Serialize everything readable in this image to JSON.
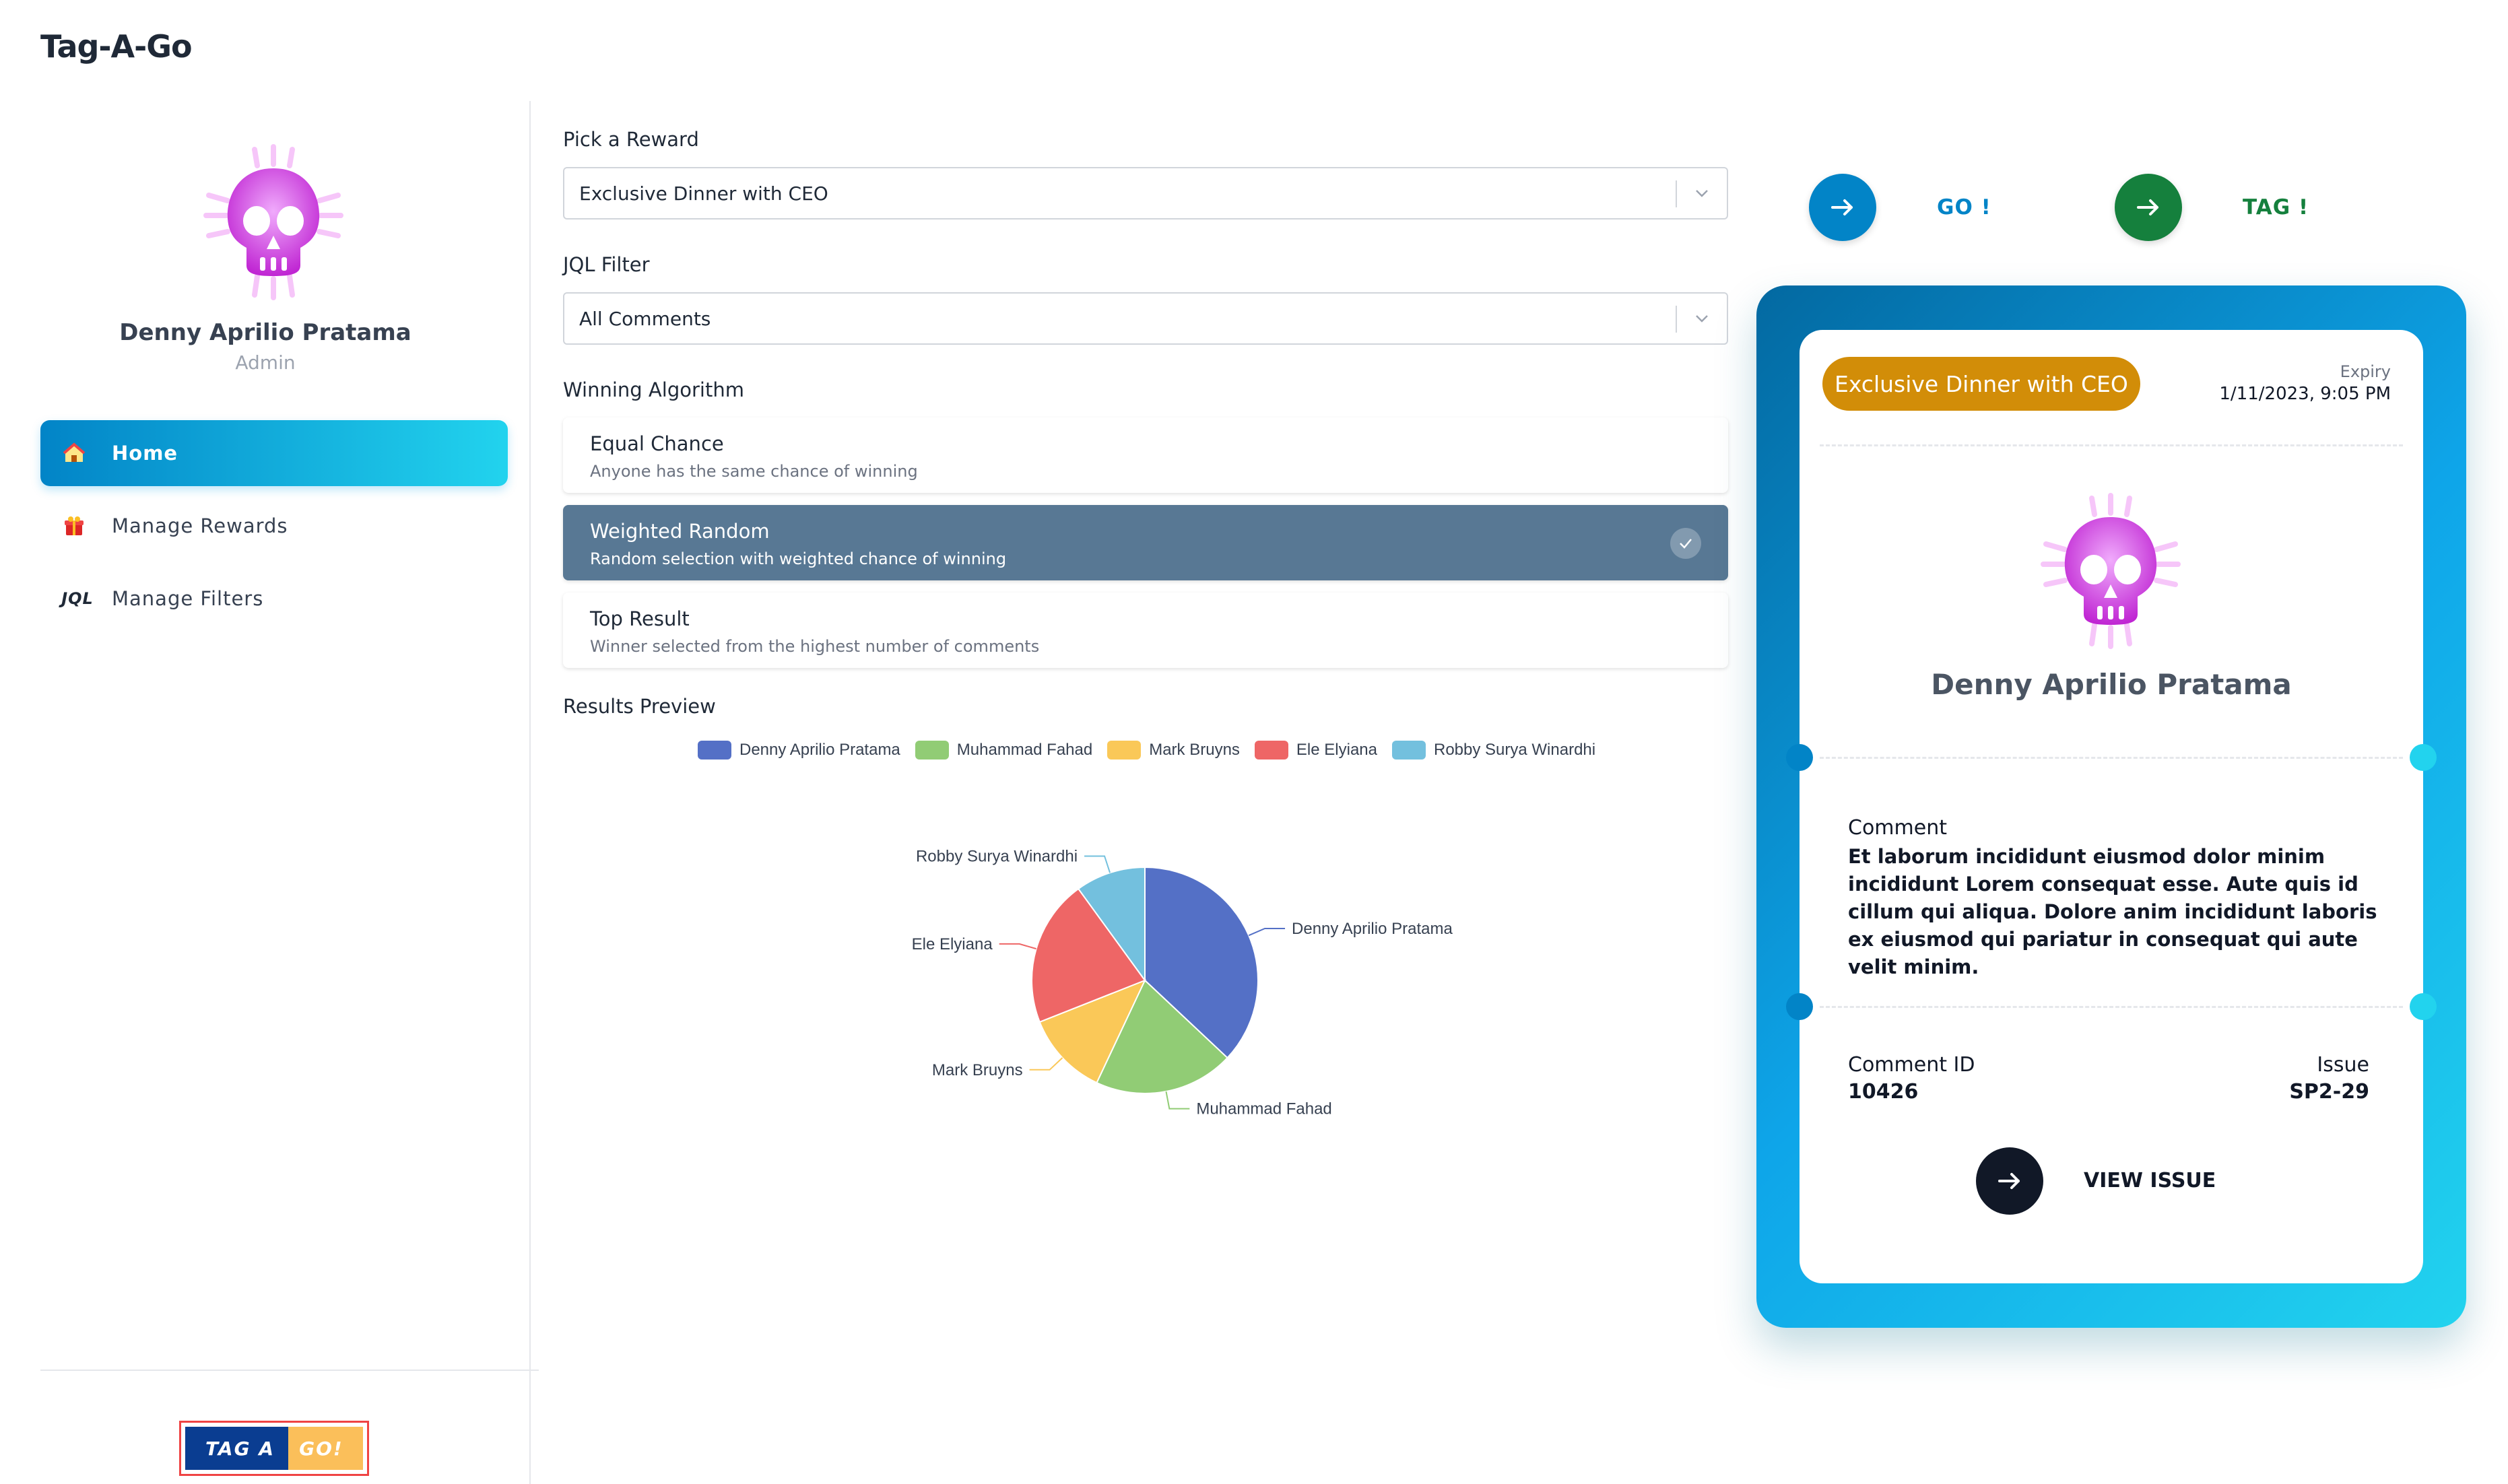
{
  "app": {
    "title": "Tag-A-Go"
  },
  "sidebar": {
    "profile": {
      "name": "Denny Aprilio Pratama",
      "role": "Admin",
      "avatar_icon": "skull-icon"
    },
    "nav": [
      {
        "label": "Home",
        "icon": "home-icon",
        "active": true
      },
      {
        "label": "Manage Rewards",
        "icon": "gift-icon",
        "active": false
      },
      {
        "label": "Manage Filters",
        "icon": "jql-icon",
        "icon_text": "JQL",
        "active": false
      }
    ],
    "logo": {
      "left_text": "TAG  A",
      "right_text": "GO!"
    }
  },
  "form": {
    "reward": {
      "label": "Pick a Reward",
      "value": "Exclusive Dinner with CEO"
    },
    "filter": {
      "label": "JQL Filter",
      "value": "All Comments"
    },
    "algorithm": {
      "label": "Winning Algorithm",
      "options": [
        {
          "title": "Equal Chance",
          "desc": "Anyone has the same chance of winning",
          "selected": false
        },
        {
          "title": "Weighted Random",
          "desc": "Random selection with weighted chance of winning",
          "selected": true
        },
        {
          "title": "Top Result",
          "desc": "Winner selected from the highest number of comments",
          "selected": false
        }
      ]
    },
    "results_label": "Results Preview"
  },
  "chart_data": {
    "type": "pie",
    "title": "",
    "legend_position": "top",
    "series": [
      {
        "name": "Denny Aprilio Pratama",
        "value": 37,
        "color": "#5470c6"
      },
      {
        "name": "Muhammad Fahad",
        "value": 20,
        "color": "#91cc75"
      },
      {
        "name": "Mark Bruyns",
        "value": 12,
        "color": "#fac858"
      },
      {
        "name": "Ele Elyiana",
        "value": 21,
        "color": "#ee6666"
      },
      {
        "name": "Robby Surya Winardhi",
        "value": 10,
        "color": "#73c0de"
      }
    ]
  },
  "actions": {
    "go": {
      "label": "GO !",
      "color": "#0284c7",
      "icon": "arrow-right-icon"
    },
    "tag": {
      "label": "TAG !",
      "color": "#15803d",
      "icon": "arrow-right-icon"
    }
  },
  "ticket": {
    "reward": "Exclusive Dinner with CEO",
    "expiry_label": "Expiry",
    "expiry_value": "1/11/2023, 9:05 PM",
    "winner_name": "Denny Aprilio Pratama",
    "comment_label": "Comment",
    "comment_text": "Et laborum incididunt eiusmod dolor minim incididunt Lorem consequat esse. Aute quis id cillum qui aliqua. Dolore anim incididunt laboris ex eiusmod qui pariatur in consequat qui aute velit minim.",
    "comment_id_label": "Comment ID",
    "comment_id": "10426",
    "issue_label": "Issue",
    "issue": "SP2-29",
    "view_issue_label": "VIEW ISSUE"
  }
}
